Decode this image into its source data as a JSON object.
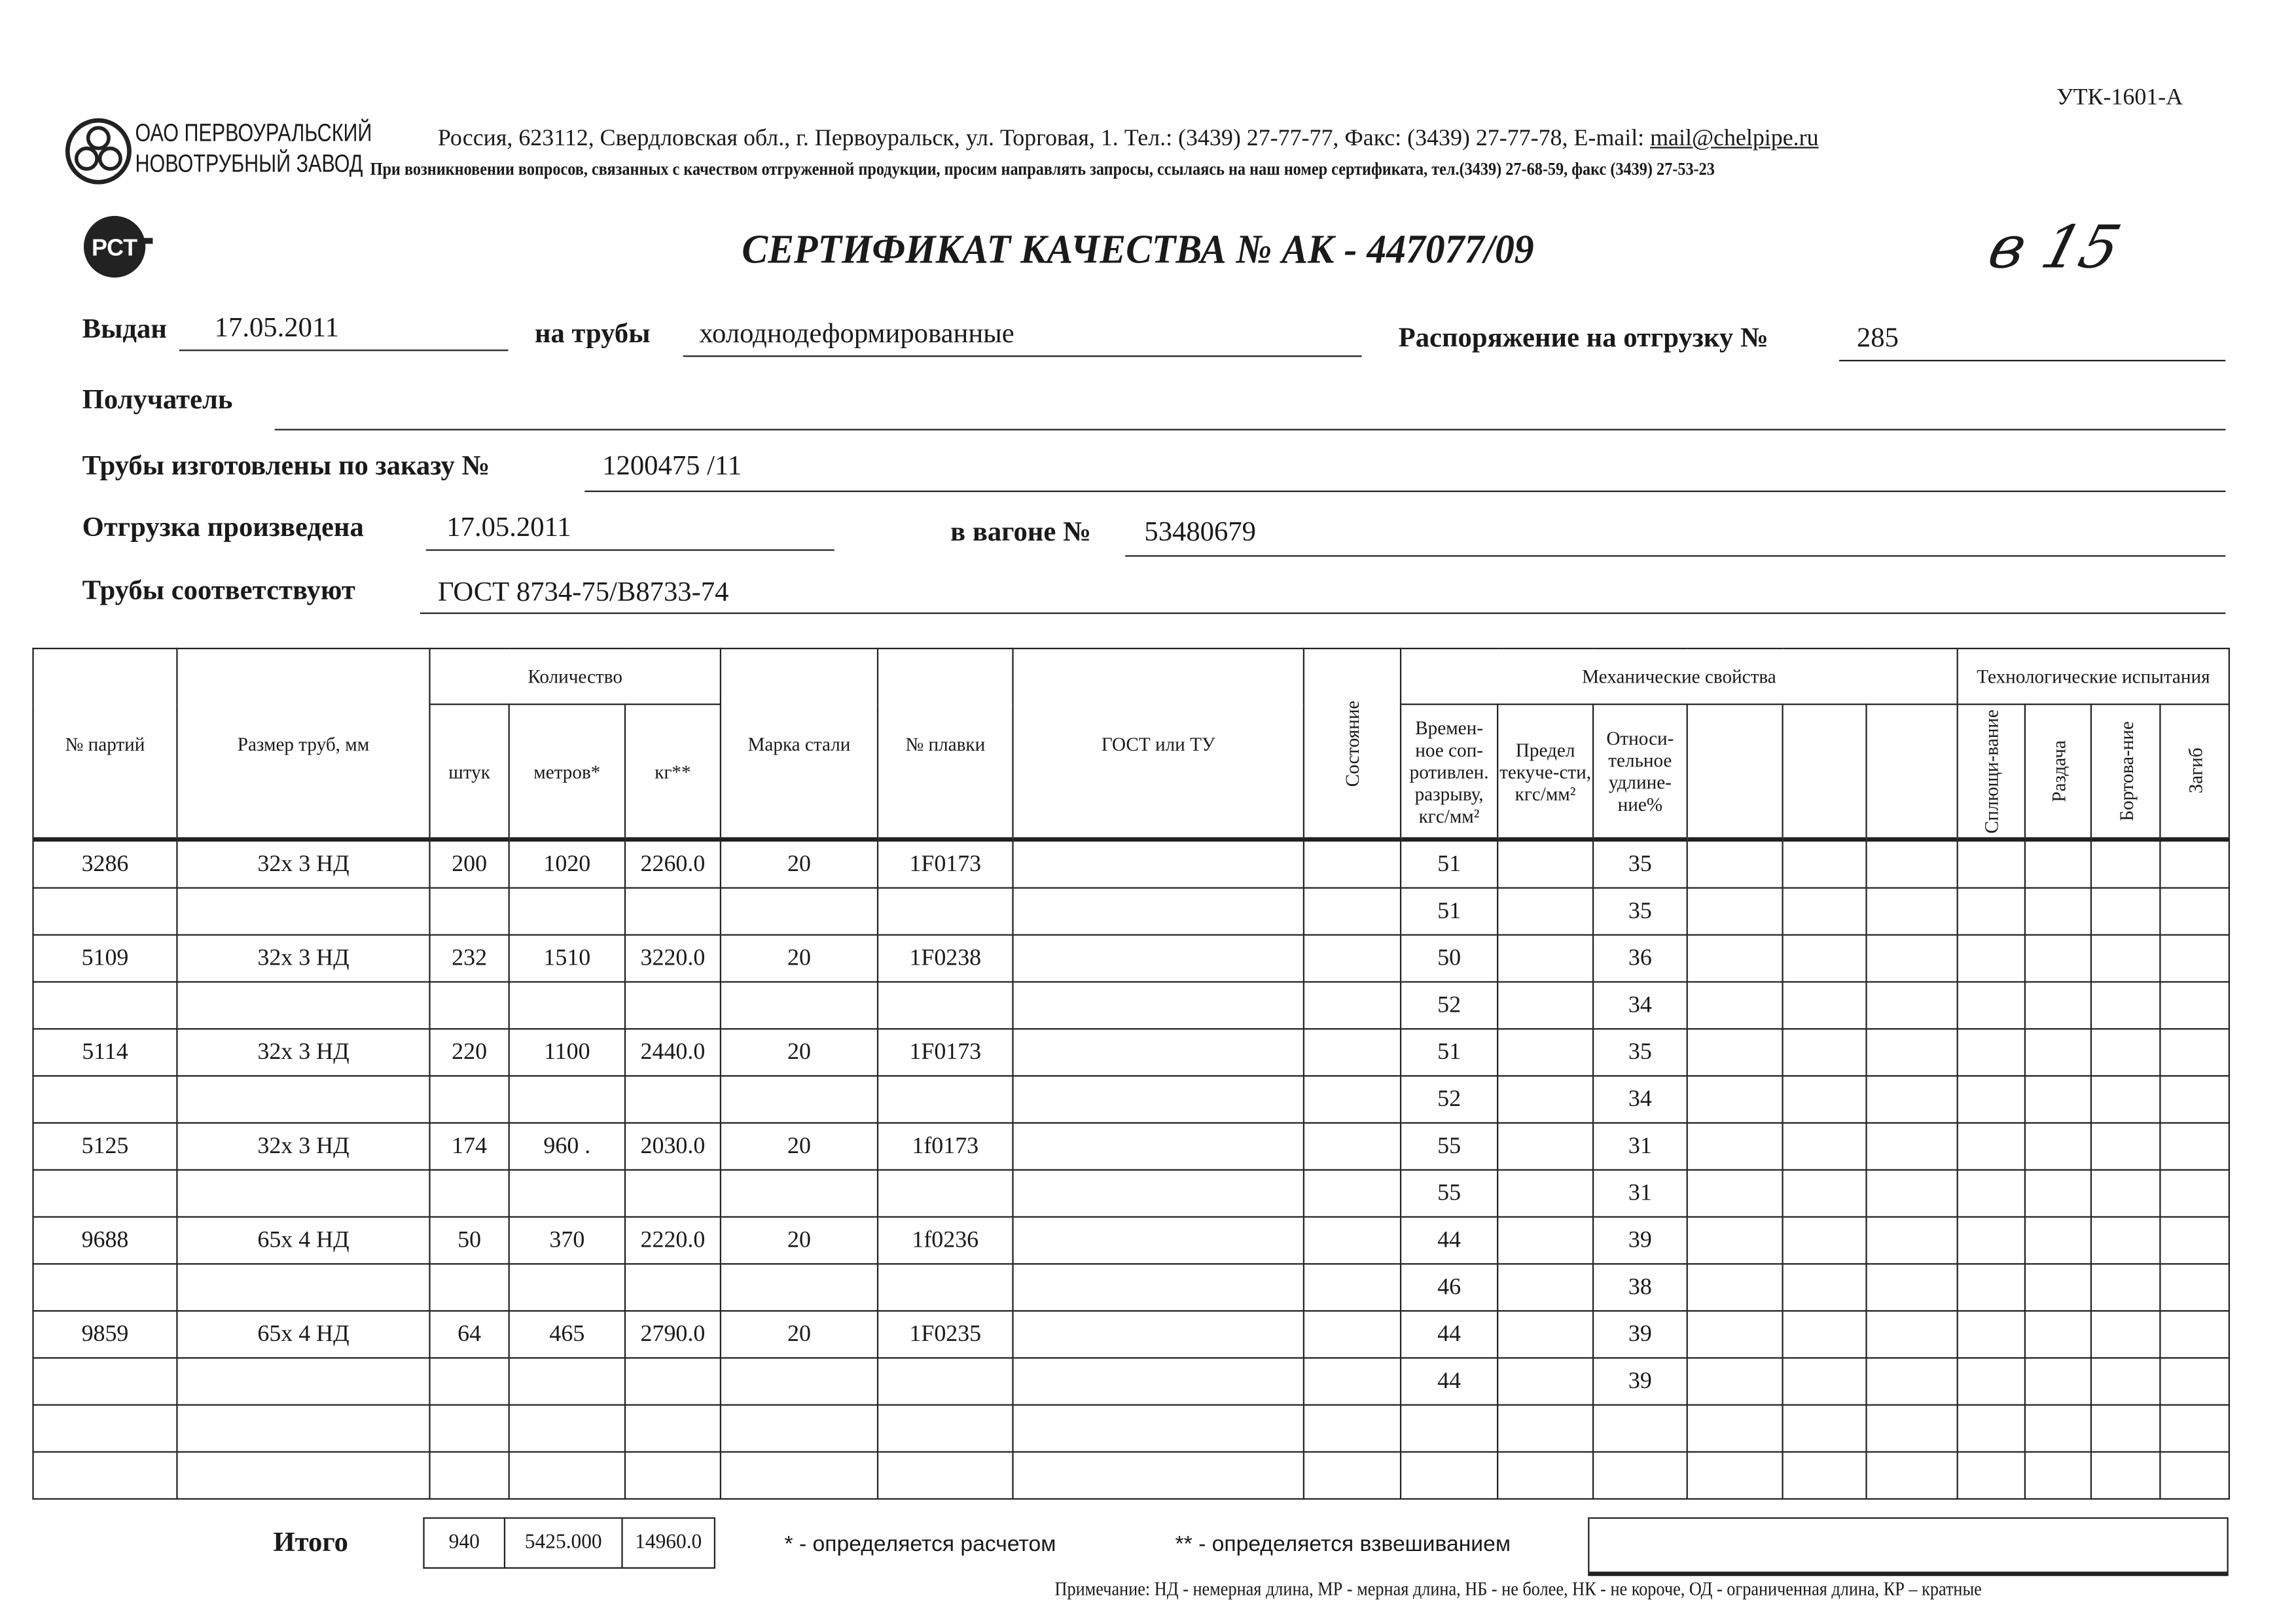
{
  "form_code": "УТК-1601-А",
  "company": {
    "name_line1": "ОАО ПЕРВОУРАЛЬСКИЙ",
    "name_line2": "НОВОТРУБНЫЙ ЗАВОД",
    "address": "Россия, 623112, Свердловская обл., г. Первоуральск, ул. Торговая, 1. Тел.: (3439) 27-77-77, Факс: (3439) 27-77-78,  E-mail: ",
    "email": "mail@chelpipe.ru",
    "notice": "При возникновении вопросов, связанных с качеством отгруженной продукции, просим направлять запросы, ссылаясь на наш номер сертификата, тел.(3439) 27-68-59, факс (3439) 27-53-23"
  },
  "cert_mark": "РСТ",
  "title": "СЕРТИФИКАТ КАЧЕСТВА   №  АК -  447077/09",
  "handwritten": "в 15",
  "fields": {
    "issued_label": "Выдан",
    "issued": "17.05.2011",
    "pipes_label": "на трубы",
    "pipes": "холоднодеформированные",
    "order_label": "Распоряжение на отгрузку №",
    "order": "285",
    "recipient_label": "Получатель",
    "recipient": "",
    "made_label": "Трубы изготовлены по заказу №",
    "made": "1200475   /11",
    "shipped_label": "Отгрузка произведена",
    "shipped": "17.05.2011",
    "wagon_label": "в вагоне №",
    "wagon": "53480679",
    "conform_label": "Трубы соответствуют",
    "conform": "ГОСТ 8734-75/В8733-74"
  },
  "table": {
    "headers": {
      "batch": "№ партий",
      "size": "Размер труб, мм",
      "quantity": "Количество",
      "pcs": "штук",
      "meters": "метров*",
      "kg": "кг**",
      "steel": "Марка стали",
      "heat": "№ плавки",
      "gost": "ГОСТ или ТУ",
      "state": "Состояние",
      "mech": "Механические свойства",
      "tensile": "Времен-ное соп-ротивлен. разрыву, кгс/мм²",
      "yield": "Предел текуче-сти, кгс/мм²",
      "elong": "Относи-тельное удлине-ние%",
      "tech": "Технологические испытания",
      "flatten": "Сплющи-вание",
      "expand": "Раздача",
      "flange": "Бортова-ние",
      "bend": "Загиб"
    },
    "rows": [
      {
        "batch": "3286",
        "size": "32х 3 НД",
        "pcs": "200",
        "meters": "1020",
        "kg": "2260.0",
        "steel": "20",
        "heat": "1F0173",
        "tensile": "51",
        "elong": "35"
      },
      {
        "tensile": "51",
        "elong": "35"
      },
      {
        "batch": "5109",
        "size": "32х 3 НД",
        "pcs": "232",
        "meters": "1510",
        "kg": "3220.0",
        "steel": "20",
        "heat": "1F0238",
        "tensile": "50",
        "elong": "36"
      },
      {
        "tensile": "52",
        "elong": "34"
      },
      {
        "batch": "5114",
        "size": "32х 3 НД",
        "pcs": "220",
        "meters": "1100",
        "kg": "2440.0",
        "steel": "20",
        "heat": "1F0173",
        "tensile": "51",
        "elong": "35"
      },
      {
        "tensile": "52",
        "elong": "34"
      },
      {
        "batch": "5125",
        "size": "32х 3 НД",
        "pcs": "174",
        "meters": "960 .",
        "kg": "2030.0",
        "steel": "20",
        "heat": "1f0173",
        "tensile": "55",
        "elong": "31"
      },
      {
        "tensile": "55",
        "elong": "31"
      },
      {
        "batch": "9688",
        "size": "65х 4 НД",
        "pcs": "50",
        "meters": "370",
        "kg": "2220.0",
        "steel": "20",
        "heat": "1f0236",
        "tensile": "44",
        "elong": "39"
      },
      {
        "tensile": "46",
        "elong": "38"
      },
      {
        "batch": "9859",
        "size": "65х 4 НД",
        "pcs": "64",
        "meters": "465",
        "kg": "2790.0",
        "steel": "20",
        "heat": "1F0235",
        "tensile": "44",
        "elong": "39"
      },
      {
        "tensile": "44",
        "elong": "39"
      },
      {},
      {}
    ],
    "total_label": "Итого",
    "total_pcs": "940",
    "total_meters": "5425.000",
    "total_kg": "14960.0"
  },
  "footnotes": {
    "calc": "* - определяется расчетом",
    "weigh": "** - определяется взвешиванием",
    "note": "Примечание: НД - немерная длина, МР - мерная длина, НБ - не более, НК - не короче, ОД - ограниченная длина, КР – кратные"
  }
}
